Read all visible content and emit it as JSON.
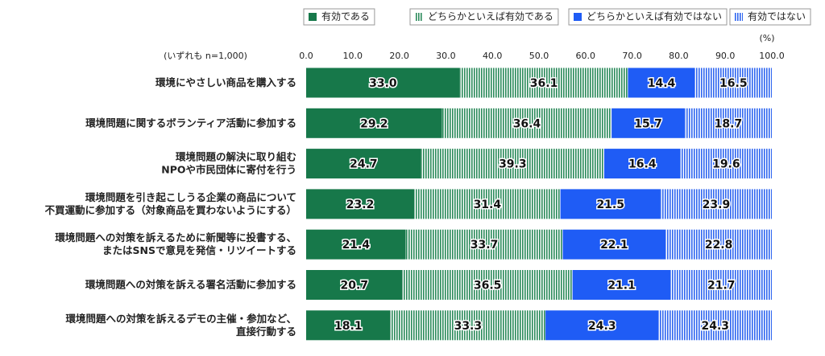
{
  "chart_data": {
    "type": "stacked-barh",
    "subtitle": "(いずれも n=1,000)",
    "unit_label": "(%)",
    "categories": [
      "環境にやさしい商品を購入する",
      "環境問題に関するボランティア活動に参加する",
      "環境問題の解決に取り組む\nNPOや市民団体に寄付を行う",
      "環境問題を引き起こしうる企業の商品について\n不買運動に参加する（対象商品を買わないようにする）",
      "環境問題への対策を訴えるために新聞等に投書する、\nまたはSNSで意見を発信・リツイートする",
      "環境問題への対策を訴える署名活動に参加する",
      "環境問題への対策を訴えるデモの主催・参加など、\n直接行動する"
    ],
    "series": [
      {
        "name": "有効である",
        "color": "#17784a",
        "hatch": false,
        "values": [
          33.0,
          29.2,
          24.7,
          23.2,
          21.4,
          20.7,
          18.1
        ],
        "value_labels": [
          "33.0",
          "29.2",
          "24.7",
          "23.2",
          "21.4",
          "20.7",
          "18.1"
        ]
      },
      {
        "name": "どちらかといえば有効である",
        "color": "#2a8a5a",
        "hatch": true,
        "values": [
          36.1,
          36.4,
          39.3,
          31.4,
          33.7,
          36.5,
          33.3
        ],
        "value_labels": [
          "36.1",
          "36.4",
          "39.3",
          "31.4",
          "33.7",
          "36.5",
          "33.3"
        ]
      },
      {
        "name": "どちらかといえば有効ではない",
        "color": "#1f5cf5",
        "hatch": false,
        "values": [
          14.4,
          15.7,
          16.4,
          21.5,
          22.1,
          21.1,
          24.3
        ],
        "value_labels": [
          "14.4",
          "15.7",
          "16.4",
          "21.5",
          "22.1",
          "21.1",
          "24.3"
        ]
      },
      {
        "name": "有効ではない",
        "color": "#2f66f0",
        "hatch": true,
        "values": [
          16.5,
          18.7,
          19.6,
          23.9,
          22.8,
          21.7,
          24.3
        ],
        "value_labels": [
          "16.5",
          "18.7",
          "19.6",
          "23.9",
          "22.8",
          "21.7",
          "24.3"
        ]
      }
    ],
    "xlim": [
      0,
      100
    ],
    "xticks": [
      {
        "value": 0,
        "label": "0.0"
      },
      {
        "value": 10,
        "label": "10.0"
      },
      {
        "value": 20,
        "label": "20.0"
      },
      {
        "value": 30,
        "label": "30.0"
      },
      {
        "value": 40,
        "label": "40.0"
      },
      {
        "value": 50,
        "label": "50.0"
      },
      {
        "value": 60,
        "label": "60.0"
      },
      {
        "value": 70,
        "label": "70.0"
      },
      {
        "value": 80,
        "label": "80.0"
      },
      {
        "value": 90,
        "label": "90.0"
      },
      {
        "value": 100,
        "label": "100.0"
      }
    ],
    "legend": "top"
  }
}
